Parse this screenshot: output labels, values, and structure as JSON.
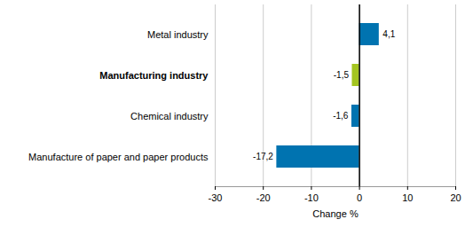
{
  "chart_data": {
    "type": "bar",
    "orientation": "horizontal",
    "categories": [
      "Metal industry",
      "Manufacturing industry",
      "Chemical industry",
      "Manufacture of paper and paper products"
    ],
    "values": [
      4.1,
      -1.5,
      -1.6,
      -17.2
    ],
    "value_labels": [
      "4,1",
      "-1,5",
      "-1,6",
      "-17,2"
    ],
    "colors": [
      "#0073b0",
      "#a4c520",
      "#0073b0",
      "#0073b0"
    ],
    "xlabel": "Change %",
    "xlim": [
      -30,
      20
    ],
    "xticks": [
      -30,
      -20,
      -10,
      0,
      10,
      20
    ],
    "grid": true,
    "data_labels": true
  }
}
